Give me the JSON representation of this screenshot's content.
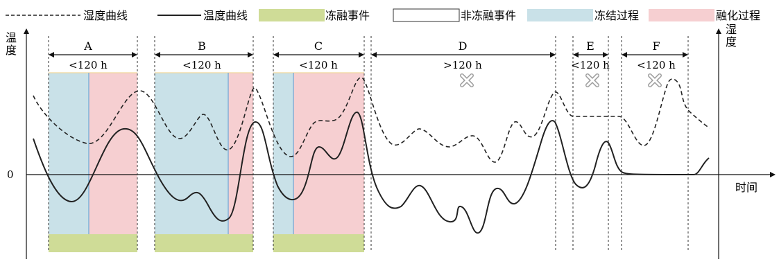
{
  "legend": {
    "humidity_label": "湿度曲线",
    "temperature_label": "温度曲线",
    "freeze_thaw_event_label": "冻融事件",
    "non_freeze_thaw_event_label": "非冻融事件",
    "freezing_process_label": "冻结过程",
    "thawing_process_label": "融化过程"
  },
  "axes": {
    "left_y_label": "温度",
    "right_y_label": "湿度",
    "x_label": "时间",
    "zero_label": "0"
  },
  "events": [
    {
      "id": "A",
      "label": "A",
      "duration": "<120 h",
      "is_freeze_thaw": true
    },
    {
      "id": "B",
      "label": "B",
      "duration": "<120 h",
      "is_freeze_thaw": true
    },
    {
      "id": "C",
      "label": "C",
      "duration": "<120 h",
      "is_freeze_thaw": true
    },
    {
      "id": "D",
      "label": "D",
      "duration": ">120 h",
      "is_freeze_thaw": false
    },
    {
      "id": "E",
      "label": "E",
      "duration": "<120 h",
      "is_freeze_thaw": false
    },
    {
      "id": "F",
      "label": "F",
      "duration": "<120 h",
      "is_freeze_thaw": false
    }
  ],
  "colors": {
    "freezing": "#c9e1e8",
    "thawing": "#f6cfd1",
    "event_bar": "#cfdc97",
    "freeze_edge": "#6aa7d6",
    "thaw_top": "#f0d79a",
    "cross": "#9e9e9e",
    "line": "#222222"
  }
}
